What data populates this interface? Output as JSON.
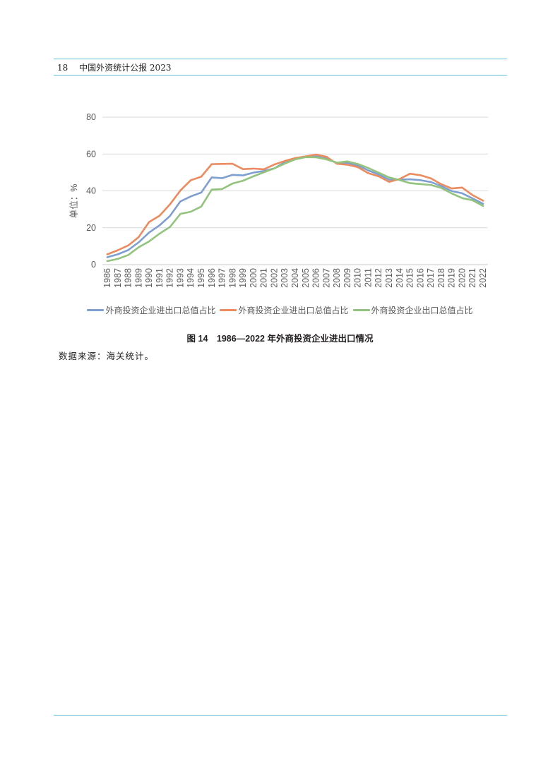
{
  "header": {
    "page_number": "18",
    "publication_title": "中国外资统计公报 2023"
  },
  "theme": {
    "rule_color": "#62c4d8"
  },
  "chart_data": {
    "type": "line",
    "ylabel": "单位：%",
    "ylim": [
      0,
      80
    ],
    "yticks": [
      0,
      20,
      40,
      60,
      80
    ],
    "grid": true,
    "legend": "bottom",
    "x": [
      "1986",
      "1987",
      "1988",
      "1989",
      "1990",
      "1991",
      "1992",
      "1993",
      "1994",
      "1995",
      "1996",
      "1997",
      "1998",
      "1999",
      "2000",
      "2001",
      "2002",
      "2003",
      "2004",
      "2005",
      "2006",
      "2007",
      "2008",
      "2009",
      "2010",
      "2011",
      "2012",
      "2013",
      "2014",
      "2015",
      "2016",
      "2017",
      "2018",
      "2019",
      "2020",
      "2021",
      "2022"
    ],
    "series": [
      {
        "name": "外商投资企业进出口总值占比",
        "color": "#7f9fd1",
        "values": [
          4.0,
          5.6,
          7.9,
          12.1,
          17.4,
          21.3,
          26.4,
          34.3,
          37.0,
          39.1,
          47.3,
          46.9,
          48.7,
          48.4,
          49.9,
          50.8,
          52.2,
          55.5,
          57.4,
          58.5,
          58.9,
          57.7,
          55.1,
          55.2,
          53.8,
          51.1,
          48.9,
          46.1,
          46.1,
          46.3,
          45.8,
          44.8,
          42.6,
          39.9,
          38.7,
          35.9,
          33.0
        ]
      },
      {
        "name": "外商投资企业进出口总值占比",
        "color": "#ec8b5e",
        "values": [
          5.6,
          7.8,
          10.4,
          14.9,
          23.1,
          26.5,
          32.7,
          40.2,
          45.8,
          47.7,
          54.5,
          54.6,
          54.7,
          51.8,
          52.1,
          51.7,
          54.3,
          56.2,
          57.8,
          58.7,
          59.7,
          58.5,
          54.7,
          54.2,
          52.9,
          49.6,
          47.9,
          44.9,
          46.4,
          49.3,
          48.5,
          46.8,
          43.6,
          41.3,
          41.8,
          37.7,
          34.7
        ]
      },
      {
        "name": "外商投资企业出口总值占比",
        "color": "#92c47d",
        "values": [
          1.9,
          3.1,
          5.2,
          9.4,
          12.6,
          16.8,
          20.4,
          27.5,
          28.7,
          31.5,
          40.7,
          41.0,
          44.0,
          45.5,
          47.9,
          50.1,
          52.2,
          54.8,
          57.1,
          58.3,
          58.2,
          57.1,
          55.3,
          56.0,
          54.6,
          52.4,
          49.9,
          47.3,
          45.9,
          44.2,
          43.7,
          43.2,
          41.6,
          38.6,
          36.1,
          34.9,
          31.8
        ]
      }
    ]
  },
  "figure": {
    "caption": "图 14　1986—2022 年外商投资企业进出口情况"
  },
  "source_note": "数据来源：海关统计。"
}
